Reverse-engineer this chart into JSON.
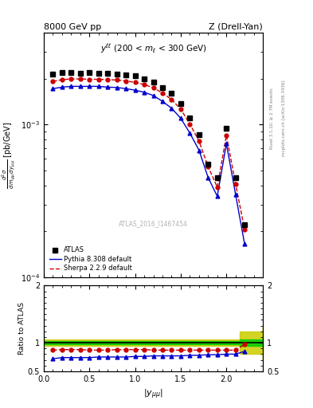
{
  "title_left": "8000 GeV pp",
  "title_right": "Z (Drell-Yan)",
  "annotation": "$y^{\\ell\\ell}$ (200 < $m_{\\ell}$ < 300 GeV)",
  "watermark": "ATLAS_2016_I1467454",
  "right_label_top": "Rivet 3.1.10, ≥ 2.7M events",
  "right_label_bot": "mcplots.cern.ch [arXiv:1306.3436]",
  "ylabel_ratio": "Ratio to ATLAS",
  "xlabel": "$|y_{\\mu\\mu}|$",
  "x_data": [
    0.1,
    0.2,
    0.3,
    0.4,
    0.5,
    0.6,
    0.7,
    0.8,
    0.9,
    1.0,
    1.1,
    1.2,
    1.3,
    1.4,
    1.5,
    1.6,
    1.7,
    1.8,
    1.9,
    2.0,
    2.1,
    2.2
  ],
  "atlas_y": [
    0.00215,
    0.0022,
    0.0022,
    0.00218,
    0.0022,
    0.00218,
    0.00218,
    0.00215,
    0.00212,
    0.00208,
    0.002,
    0.0019,
    0.00175,
    0.0016,
    0.00138,
    0.0011,
    0.00086,
    0.00055,
    0.00045,
    0.00095,
    0.00045,
    0.00022
  ],
  "pythia_y": [
    0.00172,
    0.00176,
    0.00178,
    0.00178,
    0.00178,
    0.00178,
    0.00176,
    0.00175,
    0.00172,
    0.00168,
    0.00163,
    0.00155,
    0.00142,
    0.00128,
    0.0011,
    0.00088,
    0.00068,
    0.00045,
    0.00034,
    0.00075,
    0.00035,
    0.000165
  ],
  "sherpa_y": [
    0.00192,
    0.00197,
    0.00199,
    0.00199,
    0.00198,
    0.00198,
    0.00197,
    0.00196,
    0.00193,
    0.00189,
    0.00183,
    0.00174,
    0.00161,
    0.00146,
    0.00126,
    0.00101,
    0.00078,
    0.00053,
    0.00039,
    0.00085,
    0.00041,
    0.000205
  ],
  "ratio_pythia": [
    0.72,
    0.74,
    0.74,
    0.74,
    0.74,
    0.75,
    0.75,
    0.75,
    0.75,
    0.76,
    0.76,
    0.77,
    0.77,
    0.77,
    0.77,
    0.78,
    0.78,
    0.79,
    0.79,
    0.8,
    0.8,
    0.85
  ],
  "ratio_sherpa": [
    0.87,
    0.88,
    0.88,
    0.88,
    0.87,
    0.87,
    0.87,
    0.88,
    0.88,
    0.88,
    0.88,
    0.87,
    0.87,
    0.87,
    0.87,
    0.87,
    0.87,
    0.87,
    0.87,
    0.87,
    0.87,
    0.97
  ],
  "band_x": [
    0.0,
    0.15,
    0.25,
    0.35,
    0.45,
    0.55,
    0.65,
    0.75,
    0.85,
    0.95,
    1.05,
    1.15,
    1.25,
    1.35,
    1.45,
    1.55,
    1.65,
    1.75,
    1.85,
    1.95,
    2.05,
    2.15,
    2.4
  ],
  "yellow_hi": [
    1.06,
    1.06,
    1.06,
    1.06,
    1.06,
    1.06,
    1.06,
    1.06,
    1.06,
    1.06,
    1.06,
    1.06,
    1.06,
    1.06,
    1.06,
    1.06,
    1.06,
    1.06,
    1.06,
    1.06,
    1.06,
    1.2,
    1.3
  ],
  "yellow_lo": [
    0.94,
    0.94,
    0.94,
    0.94,
    0.94,
    0.94,
    0.94,
    0.94,
    0.94,
    0.94,
    0.94,
    0.94,
    0.94,
    0.94,
    0.94,
    0.94,
    0.94,
    0.94,
    0.94,
    0.94,
    0.94,
    0.8,
    0.7
  ],
  "green_hi": [
    1.03,
    1.03,
    1.03,
    1.03,
    1.03,
    1.03,
    1.03,
    1.03,
    1.03,
    1.03,
    1.03,
    1.03,
    1.03,
    1.03,
    1.03,
    1.03,
    1.03,
    1.03,
    1.03,
    1.03,
    1.03,
    1.06,
    1.1
  ],
  "green_lo": [
    0.97,
    0.97,
    0.97,
    0.97,
    0.97,
    0.97,
    0.97,
    0.97,
    0.97,
    0.97,
    0.97,
    0.97,
    0.97,
    0.97,
    0.97,
    0.97,
    0.97,
    0.97,
    0.97,
    0.97,
    0.97,
    0.94,
    0.9
  ],
  "ylim_main": [
    0.0001,
    0.004
  ],
  "ylim_ratio": [
    0.5,
    2.0
  ],
  "xlim": [
    0.0,
    2.4
  ],
  "atlas_color": "#000000",
  "pythia_color": "#0000cc",
  "sherpa_color": "#cc0000",
  "band_yellow_color": "#cccc00",
  "band_green_color": "#00cc00",
  "legend_labels": [
    "ATLAS",
    "Pythia 8.308 default",
    "Sherpa 2.2.9 default"
  ]
}
